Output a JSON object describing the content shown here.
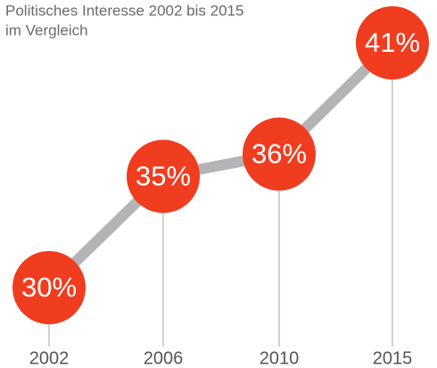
{
  "chart_data": {
    "type": "line",
    "title": [
      "Politisches Interesse 2002 bis 2015",
      "im Vergleich"
    ],
    "categories": [
      "2002",
      "2006",
      "2010",
      "2015"
    ],
    "values": [
      30,
      35,
      36,
      41
    ],
    "value_labels": [
      "30%",
      "35%",
      "36%",
      "41%"
    ],
    "color": "#f03c1f",
    "line_color": "#b4b4b7"
  }
}
